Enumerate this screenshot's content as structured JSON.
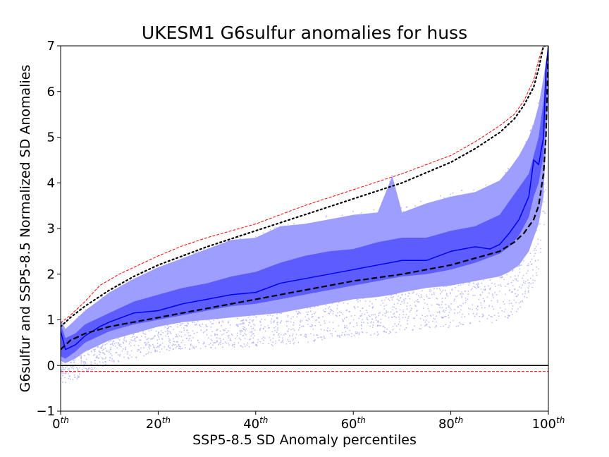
{
  "chart_data": {
    "type": "line",
    "title": "UKESM1 G6sulfur anomalies for huss",
    "xlabel": "SSP5-8.5 SD Anomaly percentiles",
    "ylabel": "G6sulfur and SSP5-8.5 Normalized SD Anomalies",
    "xlim": [
      0,
      100
    ],
    "ylim": [
      -1,
      7
    ],
    "xticks": [
      {
        "value": 0,
        "base": "0",
        "sup": "th"
      },
      {
        "value": 20,
        "base": "20",
        "sup": "th"
      },
      {
        "value": 40,
        "base": "40",
        "sup": "th"
      },
      {
        "value": 60,
        "base": "60",
        "sup": "th"
      },
      {
        "value": 80,
        "base": "80",
        "sup": "th"
      },
      {
        "value": 100,
        "base": "100",
        "sup": "th"
      }
    ],
    "yticks": [
      "−1",
      "0",
      "1",
      "2",
      "3",
      "4",
      "5",
      "6",
      "7"
    ],
    "zero_line": 0,
    "red_lower_line": -0.13,
    "ssp585_median_dashed": {
      "x": [
        0,
        2,
        5,
        10,
        15,
        20,
        30,
        40,
        50,
        60,
        70,
        80,
        85,
        90,
        93,
        95,
        97,
        98,
        99,
        99.5,
        100
      ],
      "y": [
        0.35,
        0.55,
        0.7,
        0.85,
        0.95,
        1.05,
        1.25,
        1.45,
        1.65,
        1.85,
        2.0,
        2.2,
        2.35,
        2.5,
        2.7,
        2.9,
        3.2,
        3.5,
        4.2,
        5.0,
        7.0
      ]
    },
    "ssp585_upper_dotted": {
      "x": [
        0,
        2,
        5,
        10,
        15,
        20,
        30,
        40,
        50,
        60,
        70,
        80,
        85,
        90,
        93,
        95,
        97,
        98,
        99,
        100
      ],
      "y": [
        0.85,
        1.05,
        1.3,
        1.65,
        1.95,
        2.2,
        2.6,
        2.95,
        3.3,
        3.65,
        4.0,
        4.45,
        4.75,
        5.1,
        5.4,
        5.7,
        6.1,
        6.5,
        7.0,
        7.0
      ]
    },
    "red_upper_dashed": {
      "x": [
        0,
        2,
        5,
        8,
        12,
        20,
        25,
        30,
        40,
        50,
        60,
        70,
        80,
        85,
        90,
        93,
        95,
        97,
        98,
        99,
        100
      ],
      "y": [
        0.93,
        1.1,
        1.4,
        1.75,
        2.0,
        2.4,
        2.62,
        2.8,
        3.1,
        3.5,
        3.85,
        4.2,
        4.6,
        4.9,
        5.25,
        5.5,
        5.8,
        6.25,
        6.7,
        7.0,
        7.0
      ]
    },
    "g6sulfur_median": {
      "x": [
        0,
        1,
        3,
        5,
        8,
        10,
        15,
        20,
        25,
        30,
        35,
        40,
        45,
        50,
        55,
        60,
        65,
        70,
        75,
        80,
        85,
        88,
        90,
        92,
        94,
        96,
        97,
        98,
        99,
        99.5,
        100
      ],
      "y": [
        0.75,
        0.35,
        0.45,
        0.65,
        0.85,
        0.95,
        1.15,
        1.2,
        1.35,
        1.45,
        1.55,
        1.6,
        1.8,
        1.9,
        2.0,
        2.1,
        2.2,
        2.3,
        2.3,
        2.5,
        2.6,
        2.55,
        2.65,
        2.9,
        3.2,
        3.7,
        4.5,
        4.4,
        5.0,
        6.5,
        7.0
      ]
    },
    "g6sulfur_iqr_band": {
      "x": [
        0,
        1,
        3,
        5,
        10,
        15,
        20,
        25,
        30,
        35,
        40,
        45,
        50,
        55,
        60,
        65,
        70,
        75,
        80,
        85,
        90,
        92,
        94,
        96,
        97,
        98,
        99,
        100
      ],
      "lower": [
        0.2,
        0.15,
        0.3,
        0.5,
        0.75,
        0.9,
        1.0,
        1.1,
        1.2,
        1.3,
        1.35,
        1.45,
        1.55,
        1.65,
        1.75,
        1.85,
        1.95,
        2.0,
        2.1,
        2.25,
        2.45,
        2.6,
        2.85,
        3.25,
        3.7,
        4.0,
        4.6,
        6.8
      ],
      "upper": [
        0.9,
        0.6,
        0.7,
        0.9,
        1.15,
        1.4,
        1.55,
        1.7,
        1.8,
        1.95,
        2.05,
        2.25,
        2.4,
        2.5,
        2.55,
        2.7,
        2.8,
        2.8,
        2.95,
        3.05,
        3.3,
        3.6,
        3.9,
        4.2,
        4.6,
        5.0,
        5.8,
        7.0
      ]
    },
    "g6sulfur_5_95_band": {
      "x": [
        0,
        1,
        3,
        5,
        10,
        15,
        20,
        25,
        30,
        35,
        40,
        45,
        50,
        55,
        60,
        65,
        68,
        70,
        75,
        80,
        85,
        90,
        92,
        94,
        96,
        97,
        98,
        99,
        100
      ],
      "lower": [
        0.1,
        0.05,
        0.15,
        0.3,
        0.55,
        0.7,
        0.85,
        0.95,
        1.0,
        1.05,
        1.1,
        1.15,
        1.25,
        1.35,
        1.45,
        1.5,
        1.55,
        1.6,
        1.7,
        1.75,
        1.85,
        1.95,
        2.05,
        2.2,
        2.5,
        2.8,
        3.1,
        3.7,
        6.0
      ],
      "upper": [
        1.0,
        0.8,
        1.0,
        1.2,
        1.6,
        1.9,
        2.15,
        2.35,
        2.55,
        2.75,
        2.8,
        3.05,
        3.1,
        3.2,
        3.3,
        3.35,
        4.15,
        3.35,
        3.55,
        3.7,
        3.8,
        4.05,
        4.3,
        4.6,
        5.0,
        5.3,
        5.7,
        6.3,
        7.0
      ]
    },
    "colors": {
      "band_outer": "#9999ff",
      "band_inner": "#5a5aff",
      "median_line": "#0000ee",
      "scatter": "#aaaaff",
      "black": "#000000",
      "red": "#ff0000"
    }
  }
}
